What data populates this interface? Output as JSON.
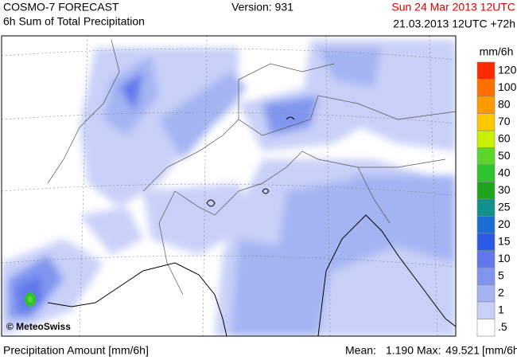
{
  "header": {
    "product": "COSMO-7 FORECAST",
    "subtitle": "6h Sum of Total Precipitation",
    "version": "Version: 931",
    "valid_time": "Sun 24 Mar 2013 12UTC",
    "run_time": "21.03.2013 12UTC +72h"
  },
  "map": {
    "copyright": "© MeteoSwiss"
  },
  "legend": {
    "unit": "mm/6h",
    "items": [
      {
        "label": "120",
        "color": "#ff2a00"
      },
      {
        "label": "100",
        "color": "#ff7000"
      },
      {
        "label": "80",
        "color": "#ff9a00"
      },
      {
        "label": "70",
        "color": "#ffc800"
      },
      {
        "label": "60",
        "color": "#c8f000"
      },
      {
        "label": "50",
        "color": "#5ad72a"
      },
      {
        "label": "40",
        "color": "#2ec22e"
      },
      {
        "label": "30",
        "color": "#1ea51e"
      },
      {
        "label": "25",
        "color": "#12908c"
      },
      {
        "label": "20",
        "color": "#1a6ed2"
      },
      {
        "label": "15",
        "color": "#2a5ae6"
      },
      {
        "label": "10",
        "color": "#6078ea"
      },
      {
        "label": "5",
        "color": "#8096ee"
      },
      {
        "label": "2",
        "color": "#a4b4f2"
      },
      {
        "label": "1",
        "color": "#c8d0f8"
      },
      {
        "label": ".5",
        "color": "#ffffff"
      }
    ]
  },
  "footer": {
    "quantity": "Precipitation Amount [mm/6h]",
    "mean_label": "Mean:",
    "mean": "1.190",
    "max_label": "Max:",
    "max": "49.521",
    "unit": "[mm/6h]"
  }
}
